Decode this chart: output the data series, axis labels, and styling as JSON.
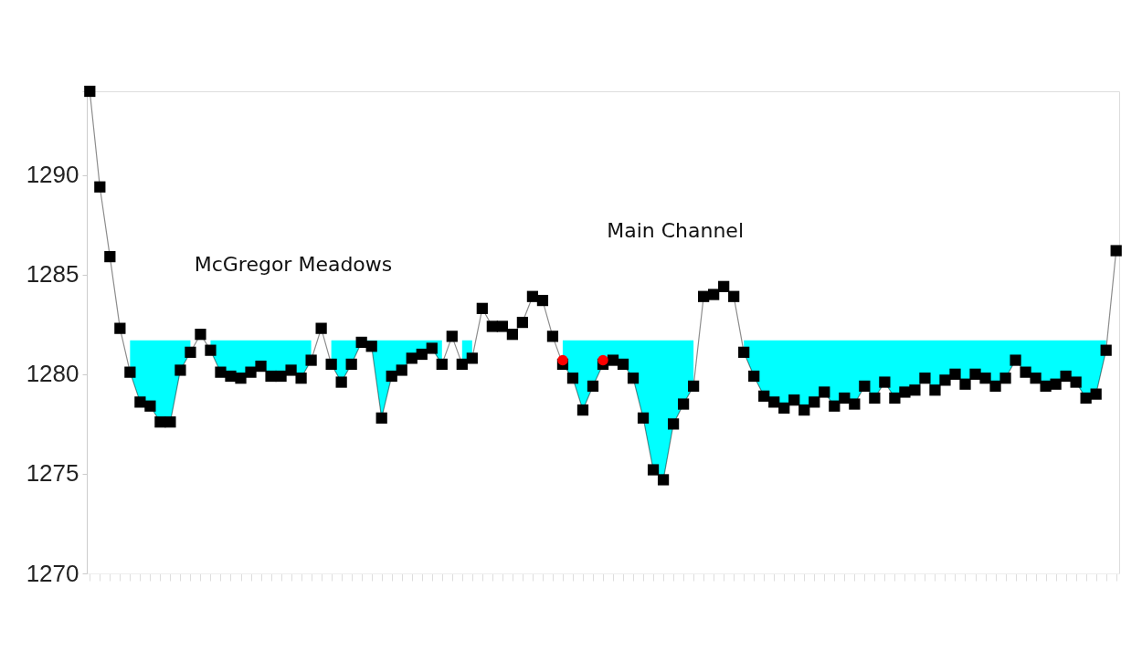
{
  "chart_data": {
    "type": "line",
    "categories": [
      null,
      null,
      null,
      null,
      null,
      null,
      null,
      null,
      null,
      null,
      null,
      null,
      null,
      null,
      null,
      null,
      null,
      null,
      null,
      null,
      null,
      null,
      null,
      null,
      null,
      null,
      null,
      null,
      null,
      null,
      null,
      null,
      null,
      null,
      null,
      null,
      null,
      null,
      null,
      null,
      null,
      null,
      null,
      null,
      null,
      null,
      null,
      null,
      null,
      null,
      null,
      null,
      null,
      null,
      null,
      null,
      null,
      null,
      null,
      null,
      null,
      null,
      null,
      null,
      null,
      null,
      null,
      null,
      null,
      null,
      null,
      null,
      null,
      null,
      null,
      null,
      null,
      null,
      null,
      null,
      null,
      null,
      null,
      null,
      null,
      null,
      null,
      null,
      null,
      null,
      null,
      null,
      null,
      null,
      null,
      null,
      null,
      null,
      null,
      null,
      null,
      null,
      null
    ],
    "series": [
      {
        "type": "area",
        "color": "#00ffff",
        "values": [
          null,
          null,
          null,
          null,
          1281.7,
          1281.7,
          1281.7,
          1281.7,
          1281.7,
          1281.7,
          1281.7,
          null,
          1281.7,
          1281.7,
          1281.7,
          1281.7,
          1281.7,
          1281.7,
          1281.7,
          1281.7,
          1281.7,
          1281.7,
          1281.7,
          null,
          1281.7,
          1281.7,
          1281.7,
          1281.7,
          1281.7,
          1281.7,
          1281.7,
          1281.7,
          1281.7,
          1281.7,
          1281.7,
          1281.7,
          null,
          1281.7,
          1281.7,
          null,
          null,
          null,
          null,
          null,
          null,
          null,
          null,
          1281.7,
          1281.7,
          1281.7,
          1281.7,
          1281.7,
          1281.7,
          1281.7,
          1281.7,
          1281.7,
          1281.7,
          1281.7,
          1281.7,
          1281.7,
          1281.7,
          null,
          null,
          null,
          null,
          1281.7,
          1281.7,
          1281.7,
          1281.7,
          1281.7,
          1281.7,
          1281.7,
          1281.7,
          1281.7,
          1281.7,
          1281.7,
          1281.7,
          1281.7,
          1281.7,
          1281.7,
          1281.7,
          1281.7,
          1281.7,
          1281.7,
          1281.7,
          1281.7,
          1281.7,
          1281.7,
          1281.7,
          1281.7,
          1281.7,
          1281.7,
          1281.7,
          1281.7,
          1281.7,
          1281.7,
          1281.7,
          1281.7,
          1281.7,
          1281.7,
          1281.7,
          1281.7,
          null
        ]
      },
      {
        "color": "#000000",
        "marker": "square",
        "values": [
          1294.2,
          1289.4,
          1285.9,
          1282.3,
          1280.1,
          1278.6,
          1278.4,
          1277.6,
          1277.6,
          1280.2,
          1281.1,
          1282.0,
          1281.2,
          1280.1,
          1279.9,
          1279.8,
          1280.1,
          1280.4,
          1279.9,
          1279.9,
          1280.2,
          1279.8,
          1280.7,
          1282.3,
          1280.5,
          1279.6,
          1280.5,
          1281.6,
          1281.4,
          1277.8,
          1279.9,
          1280.2,
          1280.8,
          1281.0,
          1281.3,
          1280.5,
          1281.9,
          1280.5,
          1280.8,
          1283.3,
          1282.4,
          1282.4,
          1282.0,
          1282.6,
          1283.9,
          1283.7,
          1281.9,
          1280.5,
          1279.8,
          1278.2,
          1279.4,
          1280.5,
          1280.7,
          1280.5,
          1279.8,
          1277.8,
          1275.2,
          1274.7,
          1277.5,
          1278.5,
          1279.4,
          1283.9,
          1284.0,
          1284.4,
          1283.9,
          1281.1,
          1279.9,
          1278.9,
          1278.6,
          1278.3,
          1278.7,
          1278.2,
          1278.6,
          1279.1,
          1278.4,
          1278.8,
          1278.5,
          1279.4,
          1278.8,
          1279.6,
          1278.8,
          1279.1,
          1279.2,
          1279.8,
          1279.2,
          1279.7,
          1280.0,
          1279.5,
          1280.0,
          1279.8,
          1279.4,
          1279.8,
          1280.7,
          1280.1,
          1279.8,
          1279.4,
          1279.5,
          1279.9,
          1279.6,
          1278.8,
          1279.0,
          1281.2,
          1286.2
        ]
      },
      {
        "type": "scatter",
        "color": "#ff0000",
        "marker": "circle",
        "values": [
          null,
          null,
          null,
          null,
          null,
          null,
          null,
          null,
          null,
          null,
          null,
          null,
          null,
          null,
          null,
          null,
          null,
          null,
          null,
          null,
          null,
          null,
          null,
          null,
          null,
          null,
          null,
          null,
          null,
          null,
          null,
          null,
          null,
          null,
          null,
          null,
          null,
          null,
          null,
          null,
          null,
          null,
          null,
          null,
          null,
          null,
          null,
          1280.7,
          null,
          null,
          null,
          1280.7,
          null,
          null,
          null,
          null,
          null,
          null,
          null,
          null,
          null,
          null,
          null,
          null,
          null,
          null,
          null,
          null,
          null,
          null,
          null,
          null,
          null,
          null,
          null,
          null,
          null,
          null,
          null,
          null,
          null,
          null,
          null,
          null,
          null,
          null,
          null,
          null,
          null,
          null,
          null,
          null,
          null,
          null,
          null,
          null,
          null,
          null,
          null,
          null,
          null,
          null,
          null
        ]
      }
    ],
    "ylim": [
      1270,
      1294.2
    ],
    "yticks": [
      1270,
      1275,
      1280,
      1285,
      1290,
      {
        "value": 1294.2,
        "label": null
      }
    ],
    "tick_labels": "y",
    "annotations": [
      "McGregor Meadows",
      "Main Channel"
    ]
  }
}
